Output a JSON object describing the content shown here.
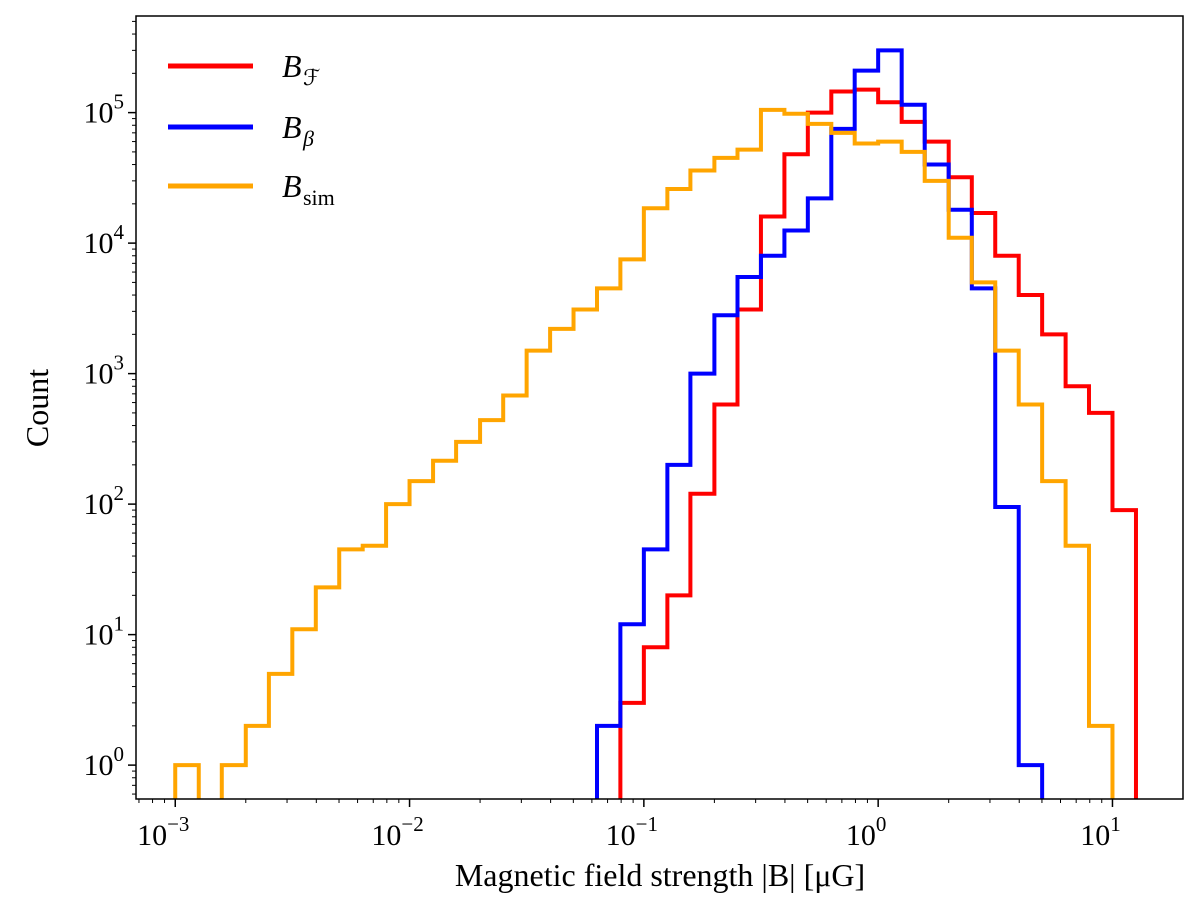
{
  "chart_data": {
    "type": "histogram-step",
    "xscale": "log",
    "yscale": "log",
    "xlim": [
      0.00068,
      20
    ],
    "ylim": [
      0.55,
      550000
    ],
    "xlabel": "Magnetic field strength |B| [μG]",
    "ylabel": "Count",
    "legend_position": "top-left",
    "bin_edges": [
      0.001,
      0.00126,
      0.00158,
      0.002,
      0.00251,
      0.00316,
      0.00398,
      0.00501,
      0.00631,
      0.00794,
      0.01,
      0.0126,
      0.0158,
      0.02,
      0.0251,
      0.0316,
      0.0398,
      0.0501,
      0.0631,
      0.0794,
      0.1,
      0.126,
      0.158,
      0.2,
      0.251,
      0.316,
      0.398,
      0.501,
      0.631,
      0.794,
      1.0,
      1.26,
      1.58,
      2.0,
      2.51,
      3.16,
      3.98,
      5.01,
      6.31,
      7.94,
      10.0,
      12.6
    ],
    "series": [
      {
        "name": "B_F",
        "label_main": "B",
        "label_sub": "ℱ",
        "color": "#ff0000",
        "counts": [
          0,
          0,
          0,
          0,
          0,
          0,
          0,
          0,
          0,
          0,
          0,
          0,
          0,
          0,
          0,
          0,
          0,
          0,
          0,
          3,
          8,
          20,
          120,
          580,
          3100,
          16000,
          48000,
          100000,
          145000,
          150000,
          120000,
          85000,
          60000,
          32000,
          17000,
          8000,
          4000,
          2000,
          800,
          500,
          90
        ]
      },
      {
        "name": "B_beta",
        "label_main": "B",
        "label_sub": "β",
        "color": "#0000ff",
        "counts": [
          0,
          0,
          0,
          0,
          0,
          0,
          0,
          0,
          0,
          0,
          0,
          0,
          0,
          0,
          0,
          0,
          0,
          0,
          2,
          12,
          45,
          200,
          1000,
          2800,
          5500,
          8000,
          12500,
          22000,
          75000,
          210000,
          300000,
          115000,
          40000,
          18000,
          4500,
          95,
          1,
          0,
          0,
          0,
          0
        ]
      },
      {
        "name": "B_sim",
        "label_main": "B",
        "label_sub": "sim",
        "color": "#ffa500",
        "counts": [
          1,
          0,
          1,
          2,
          5,
          11,
          23,
          45,
          48,
          100,
          150,
          215,
          300,
          440,
          680,
          1500,
          2200,
          3100,
          4500,
          7500,
          18500,
          26000,
          36000,
          45000,
          52000,
          105000,
          98000,
          82000,
          70000,
          58000,
          60000,
          50000,
          30000,
          11000,
          5000,
          1500,
          580,
          150,
          48,
          2,
          0
        ]
      }
    ],
    "x_ticks": [
      {
        "value": 0.001,
        "base": "10",
        "exp": "−3"
      },
      {
        "value": 0.01,
        "base": "10",
        "exp": "−2"
      },
      {
        "value": 0.1,
        "base": "10",
        "exp": "−1"
      },
      {
        "value": 1,
        "base": "10",
        "exp": "0"
      },
      {
        "value": 10,
        "base": "10",
        "exp": "1"
      }
    ],
    "y_ticks": [
      {
        "value": 1,
        "base": "10",
        "exp": "0"
      },
      {
        "value": 10,
        "base": "10",
        "exp": "1"
      },
      {
        "value": 100,
        "base": "10",
        "exp": "2"
      },
      {
        "value": 1000,
        "base": "10",
        "exp": "3"
      },
      {
        "value": 10000,
        "base": "10",
        "exp": "4"
      },
      {
        "value": 100000,
        "base": "10",
        "exp": "5"
      }
    ]
  }
}
